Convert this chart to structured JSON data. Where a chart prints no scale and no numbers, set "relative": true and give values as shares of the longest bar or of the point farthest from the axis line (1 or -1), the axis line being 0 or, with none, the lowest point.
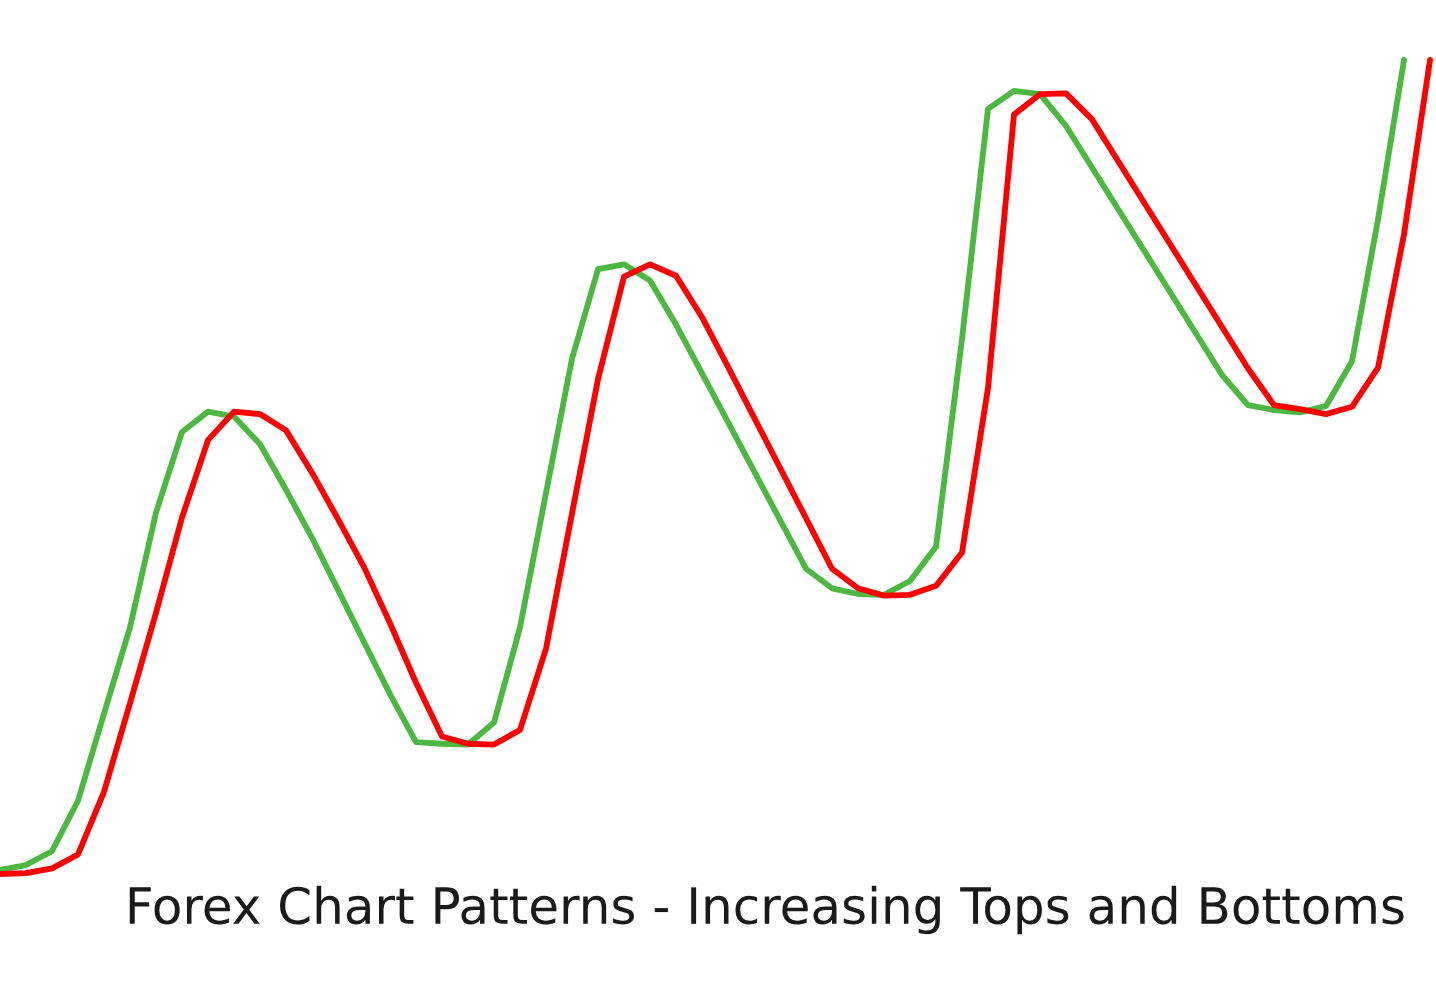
{
  "chart_data": {
    "type": "line",
    "title": "Forex Chart Patterns - Increasing Tops and Bottoms",
    "relative": true,
    "line_style": "solid",
    "categories": [
      null,
      null,
      null,
      null,
      null,
      null,
      null,
      null,
      null,
      null,
      null,
      null,
      null,
      null,
      null,
      null,
      null,
      null,
      null,
      null,
      null,
      null,
      null,
      null,
      null,
      null,
      null,
      null,
      null,
      null,
      null,
      null,
      null,
      null,
      null,
      null,
      null,
      null,
      null,
      null,
      null,
      null,
      null,
      null,
      null,
      null,
      null,
      null,
      null,
      null,
      null,
      null,
      null,
      null,
      null,
      null
    ],
    "series": [
      {
        "color": "#4cb842",
        "values": [
          0.005,
          0.011,
          0.028,
          0.09,
          0.197,
          0.303,
          0.444,
          0.543,
          0.568,
          0.562,
          0.528,
          0.472,
          0.413,
          0.349,
          0.285,
          0.221,
          0.162,
          0.16,
          0.159,
          0.186,
          0.303,
          0.468,
          0.633,
          0.743,
          0.749,
          0.729,
          0.675,
          0.615,
          0.555,
          0.495,
          0.435,
          0.375,
          0.351,
          0.344,
          0.343,
          0.36,
          0.402,
          0.657,
          0.94,
          0.962,
          0.958,
          0.919,
          0.868,
          0.817,
          0.766,
          0.715,
          0.664,
          0.613,
          0.576,
          0.57,
          0.567,
          0.575,
          0.63,
          0.804,
          1.0,
          null
        ]
      },
      {
        "color": "#ff0000",
        "values": [
          0,
          0.001,
          0.007,
          0.024,
          0.101,
          0.21,
          0.321,
          0.438,
          0.533,
          0.568,
          0.565,
          0.545,
          0.493,
          0.436,
          0.377,
          0.308,
          0.235,
          0.169,
          0.16,
          0.159,
          0.177,
          0.277,
          0.443,
          0.608,
          0.734,
          0.749,
          0.735,
          0.684,
          0.623,
          0.561,
          0.499,
          0.437,
          0.375,
          0.351,
          0.342,
          0.343,
          0.354,
          0.395,
          0.597,
          0.933,
          0.958,
          0.959,
          0.927,
          0.876,
          0.825,
          0.774,
          0.723,
          0.672,
          0.621,
          0.576,
          0.571,
          0.565,
          0.574,
          0.622,
          0.786,
          1.0
        ]
      }
    ]
  }
}
